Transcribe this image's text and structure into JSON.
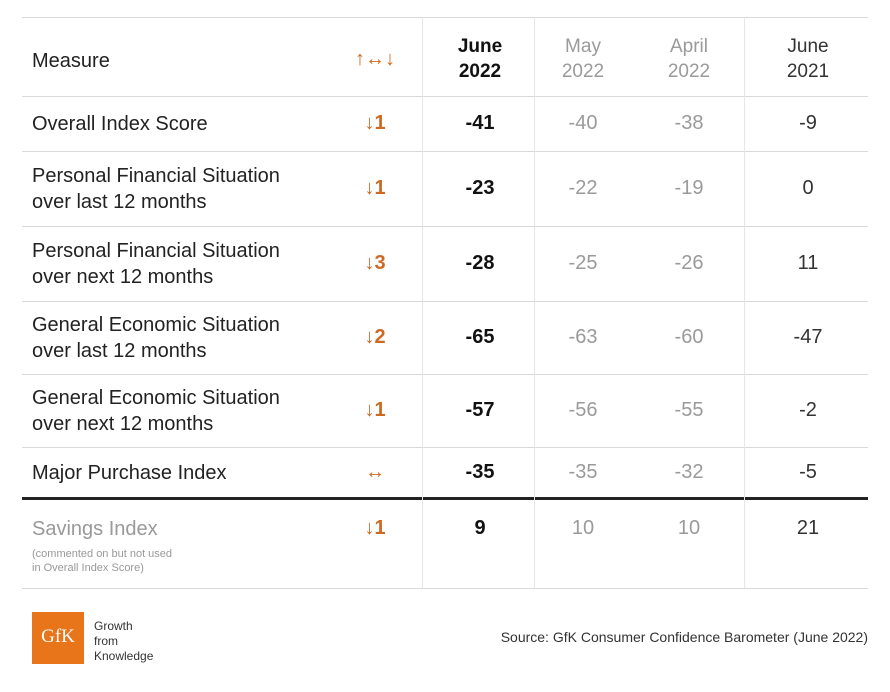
{
  "header": {
    "measure_label": "Measure",
    "change_label": "↑↔↓",
    "columns": [
      {
        "line1": "June",
        "line2": "2022"
      },
      {
        "line1": "May",
        "line2": "2022"
      },
      {
        "line1": "April",
        "line2": "2022"
      },
      {
        "line1": "June",
        "line2": "2021"
      }
    ]
  },
  "chart_data": {
    "type": "table",
    "columns": [
      "Measure",
      "↑↔↓",
      "June 2022",
      "May 2022",
      "April 2022",
      "June 2021"
    ],
    "rows": [
      {
        "label": [
          "Overall Index Score"
        ],
        "change": "↓1",
        "values": [
          -41,
          -40,
          -38,
          -9
        ]
      },
      {
        "label": [
          "Personal Financial Situation",
          "over last 12 months"
        ],
        "change": "↓1",
        "values": [
          -23,
          -22,
          -19,
          0
        ]
      },
      {
        "label": [
          "Personal Financial Situation",
          "over next 12 months"
        ],
        "change": "↓3",
        "values": [
          -28,
          -25,
          -26,
          11
        ]
      },
      {
        "label": [
          "General Economic Situation",
          "over last 12 months"
        ],
        "change": "↓2",
        "values": [
          -65,
          -63,
          -60,
          -47
        ]
      },
      {
        "label": [
          "General Economic Situation",
          "over next 12 months"
        ],
        "change": "↓1",
        "values": [
          -57,
          -56,
          -55,
          -2
        ]
      },
      {
        "label": [
          "Major Purchase Index"
        ],
        "change": "↔",
        "values": [
          -35,
          -35,
          -32,
          -5
        ]
      },
      {
        "label": [
          "Savings Index"
        ],
        "change": "↓1",
        "values": [
          9,
          10,
          10,
          21
        ],
        "note": [
          "(commented on but not used",
          "in Overall Index Score)"
        ]
      }
    ]
  },
  "footer": {
    "logo_text": "GfK",
    "tagline": [
      "Growth",
      "from",
      "Knowledge"
    ],
    "source": "Source: GfK Consumer Confidence Barometer (June 2022)"
  },
  "colors": {
    "accent": "#cc6a24",
    "logo": "#e8751a"
  }
}
